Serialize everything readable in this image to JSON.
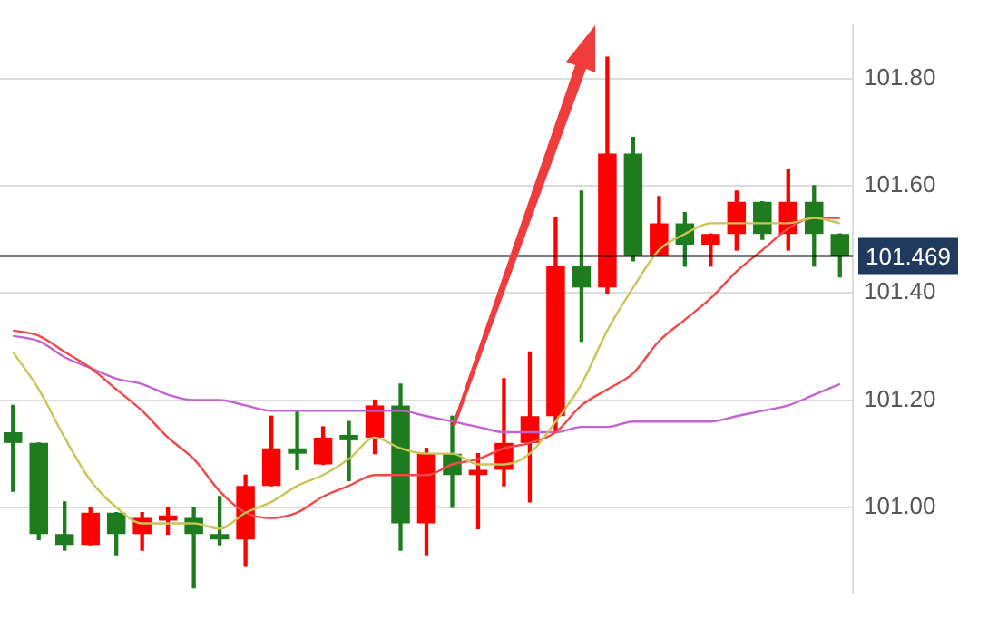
{
  "chart_data": {
    "type": "candlestick",
    "categories": [
      null,
      null,
      null,
      null,
      null,
      null,
      null,
      null,
      null,
      null,
      null,
      null,
      null,
      null,
      null,
      null,
      null,
      null,
      null,
      null,
      null,
      null,
      null,
      null,
      null,
      null,
      null,
      null,
      null,
      null,
      null,
      null,
      null
    ],
    "ohlc": [
      [
        101.14,
        101.19,
        101.03,
        101.12
      ],
      [
        101.12,
        101.12,
        100.94,
        100.95
      ],
      [
        100.95,
        101.01,
        100.92,
        100.93
      ],
      [
        100.93,
        101.0,
        100.93,
        100.99
      ],
      [
        100.99,
        100.99,
        100.91,
        100.95
      ],
      [
        100.95,
        100.99,
        100.92,
        100.98
      ],
      [
        100.975,
        101.0,
        100.95,
        100.985
      ],
      [
        100.98,
        101.0,
        100.85,
        100.95
      ],
      [
        100.95,
        101.02,
        100.93,
        100.94
      ],
      [
        100.94,
        101.06,
        100.89,
        101.04
      ],
      [
        101.04,
        101.17,
        101.04,
        101.11
      ],
      [
        101.11,
        101.18,
        101.07,
        101.1
      ],
      [
        101.08,
        101.15,
        101.08,
        101.13
      ],
      [
        101.135,
        101.16,
        101.05,
        101.125
      ],
      [
        101.13,
        101.2,
        101.1,
        101.19
      ],
      [
        101.19,
        101.23,
        100.92,
        100.97
      ],
      [
        100.97,
        101.11,
        100.91,
        101.1
      ],
      [
        101.1,
        101.17,
        101.0,
        101.06
      ],
      [
        101.06,
        101.1,
        100.96,
        101.07
      ],
      [
        101.07,
        101.24,
        101.04,
        101.12
      ],
      [
        101.12,
        101.29,
        101.01,
        101.17
      ],
      [
        101.17,
        101.54,
        101.14,
        101.45
      ],
      [
        101.45,
        101.59,
        101.31,
        101.41
      ],
      [
        101.41,
        101.84,
        101.4,
        101.66
      ],
      [
        101.66,
        101.69,
        101.46,
        101.47
      ],
      [
        101.47,
        101.58,
        101.47,
        101.53
      ],
      [
        101.53,
        101.55,
        101.45,
        101.49
      ],
      [
        101.49,
        101.51,
        101.45,
        101.51
      ],
      [
        101.51,
        101.59,
        101.48,
        101.57
      ],
      [
        101.57,
        101.57,
        101.5,
        101.51
      ],
      [
        101.51,
        101.63,
        101.48,
        101.57
      ],
      [
        101.57,
        101.6,
        101.45,
        101.51
      ],
      [
        101.51,
        101.51,
        101.43,
        101.469
      ]
    ],
    "colors": [
      "#1e7b1e",
      "#1e7b1e",
      "#1e7b1e",
      "#ff0000",
      "#1e7b1e",
      "#ff0000",
      "#ff0000",
      "#1e7b1e",
      "#1e7b1e",
      "#ff0000",
      "#ff0000",
      "#1e7b1e",
      "#ff0000",
      "#1e7b1e",
      "#ff0000",
      "#1e7b1e",
      "#ff0000",
      "#1e7b1e",
      "#ff0000",
      "#ff0000",
      "#ff0000",
      "#ff0000",
      "#1e7b1e",
      "#ff0000",
      "#1e7b1e",
      "#ff0000",
      "#1e7b1e",
      "#ff0000",
      "#ff0000",
      "#1e7b1e",
      "#ff0000",
      "#1e7b1e",
      "#1e7b1e"
    ],
    "series": [
      {
        "type": "line",
        "color": "#c8c455",
        "values": [
          101.29,
          101.22,
          101.13,
          101.05,
          101.0,
          100.97,
          100.97,
          100.97,
          100.96,
          100.99,
          101.01,
          101.04,
          101.06,
          101.09,
          101.13,
          101.11,
          101.1,
          101.1,
          101.08,
          101.08,
          101.1,
          101.16,
          101.23,
          101.33,
          101.41,
          101.48,
          101.51,
          101.53,
          101.53,
          101.53,
          101.53,
          101.54,
          101.53
        ]
      },
      {
        "type": "line",
        "color": "#f04848",
        "values": [
          101.33,
          101.32,
          101.29,
          101.26,
          101.22,
          101.18,
          101.13,
          101.09,
          101.03,
          100.99,
          100.98,
          100.99,
          101.02,
          101.04,
          101.06,
          101.06,
          101.06,
          101.08,
          101.09,
          101.11,
          101.12,
          101.14,
          101.19,
          101.22,
          101.25,
          101.31,
          101.35,
          101.39,
          101.44,
          101.48,
          101.52,
          101.54,
          101.54
        ]
      },
      {
        "type": "line",
        "color": "#c462d4",
        "values": [
          101.32,
          101.31,
          101.28,
          101.26,
          101.24,
          101.23,
          101.21,
          101.2,
          101.2,
          101.19,
          101.18,
          101.18,
          101.18,
          101.18,
          101.18,
          101.18,
          101.17,
          101.16,
          101.15,
          101.14,
          101.14,
          101.14,
          101.15,
          101.15,
          101.16,
          101.16,
          101.16,
          101.16,
          101.17,
          101.18,
          101.19,
          101.21,
          101.23
        ]
      }
    ],
    "ylim": [
      100.84,
      101.9
    ],
    "yticks": [
      {
        "value": 101.0,
        "label": "101.00"
      },
      {
        "value": 101.2,
        "label": "101.20"
      },
      {
        "value": 101.4,
        "label": "101.40"
      },
      {
        "value": 101.6,
        "label": "101.60"
      },
      {
        "value": 101.8,
        "label": "101.80"
      }
    ],
    "grid": "y",
    "legend": false,
    "tick_labels": "y",
    "marker": "none",
    "line_style": "solid",
    "ref_lines": [
      {
        "axis": "y",
        "value": 101.469,
        "label": "101.469",
        "color": "#000000"
      }
    ]
  }
}
